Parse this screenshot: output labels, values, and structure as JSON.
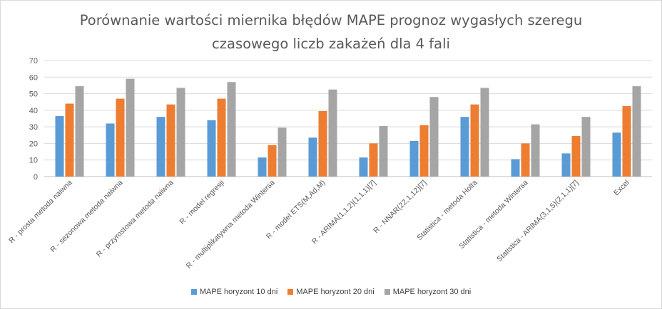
{
  "chart_data": {
    "type": "bar",
    "title_lines": [
      "Porównanie wartości miernika błędów MAPE prognoz wygasłych szeregu",
      "czasowego liczb zakażeń dla 4 fali"
    ],
    "categories": [
      "R - prosta metoda naiwna",
      "R - sezonowa metoda naiwna",
      "R - przyrostowa metoda naiwna",
      "R - model regresji",
      "R - multiplikatywna metoda Wintersa",
      "R - model ETS(M,Ad,M)",
      "R - ARIMA(1,1,2)(1,1,1)[7]",
      "R - NNAR(22,1,12)[7]",
      "Statistica - metoda Holta",
      "Statistica - metoda Wintersa",
      "Statistica - ARIMA(3,1,5)(2,1,1)[7]",
      "Excel"
    ],
    "series": [
      {
        "name": "MAPE horyzont 10 dni",
        "color": "#5b9bd5",
        "values": [
          36.5,
          32,
          36,
          34,
          11.5,
          23.5,
          11.5,
          21.5,
          36,
          10.5,
          14,
          26.5
        ]
      },
      {
        "name": "MAPE horyzont 20 dni",
        "color": "#ed7d31",
        "values": [
          44,
          47,
          43.5,
          47,
          19,
          39.5,
          20,
          31,
          43.5,
          20,
          24.5,
          42.5
        ]
      },
      {
        "name": "MAPE horyzont 30 dni",
        "color": "#a5a5a5",
        "values": [
          54.5,
          59,
          53.5,
          57,
          29.5,
          52.5,
          30.5,
          48,
          53.5,
          31.5,
          36,
          54.5
        ]
      }
    ],
    "ylim": [
      0,
      70
    ],
    "yticks": [
      0,
      10,
      20,
      30,
      40,
      50,
      60,
      70
    ],
    "grid": true,
    "legend_position": "bottom"
  }
}
